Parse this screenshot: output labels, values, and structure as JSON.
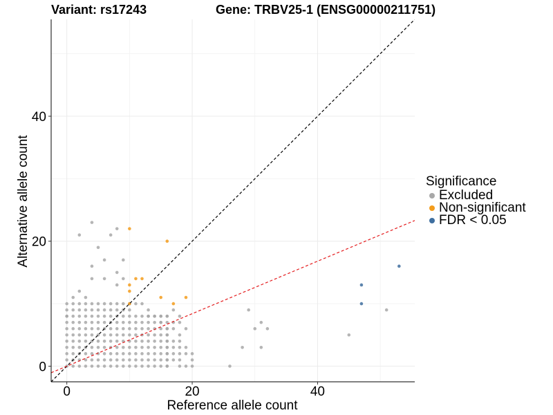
{
  "chart_data": {
    "type": "scatter",
    "title_left": "Variant: rs17243",
    "title_right": "Gene: TRBV25-1 (ENSG00000211751)",
    "xlabel": "Reference allele count",
    "ylabel": "Alternative allele count",
    "xlim": [
      -2.5,
      55.5
    ],
    "ylim": [
      -2.5,
      55.5
    ],
    "x_ticks": [
      0,
      20,
      40
    ],
    "y_ticks": [
      0,
      20,
      40
    ],
    "grid": true,
    "legend": {
      "title": "Significance",
      "placement": "right",
      "entries": [
        {
          "label": "Excluded",
          "color": "#a8a8a8"
        },
        {
          "label": "Non-significant",
          "color": "#f39c1c"
        },
        {
          "label": "FDR < 0.05",
          "color": "#3f6f9f"
        }
      ]
    },
    "reference_lines": [
      {
        "name": "identity",
        "slope": 1,
        "intercept": 0,
        "color": "#000000",
        "style": "dashed"
      },
      {
        "name": "fit",
        "slope": 0.42,
        "intercept": 0,
        "color": "#e41a1c",
        "style": "dashed"
      }
    ],
    "grid_cluster": {
      "series": "Excluded",
      "x_max": 16,
      "y_max": 10,
      "note": "dense lattice of excluded points for reference count 0-16 and alternative count 0-10"
    },
    "series": [
      {
        "name": "Excluded",
        "points": [
          [
            0,
            8
          ],
          [
            1,
            11
          ],
          [
            2,
            12
          ],
          [
            2,
            21
          ],
          [
            3,
            11
          ],
          [
            4,
            16
          ],
          [
            4,
            23
          ],
          [
            4,
            14
          ],
          [
            5,
            19
          ],
          [
            6,
            17
          ],
          [
            6,
            14
          ],
          [
            7,
            21
          ],
          [
            8,
            13
          ],
          [
            8,
            22
          ],
          [
            9,
            17
          ],
          [
            9,
            14
          ],
          [
            8,
            15
          ],
          [
            17,
            9
          ],
          [
            18,
            8
          ],
          [
            18,
            7
          ],
          [
            17,
            7
          ],
          [
            16,
            8
          ],
          [
            17,
            6
          ],
          [
            18,
            5
          ],
          [
            19,
            6
          ],
          [
            20,
            1
          ],
          [
            20,
            0
          ],
          [
            26,
            0
          ],
          [
            28,
            3
          ],
          [
            29,
            9
          ],
          [
            30,
            6
          ],
          [
            31,
            7
          ],
          [
            31,
            3
          ],
          [
            32,
            6
          ],
          [
            45,
            5
          ],
          [
            51,
            9
          ],
          [
            20,
            2
          ],
          [
            19,
            3
          ],
          [
            18,
            4
          ],
          [
            18,
            3
          ],
          [
            17,
            4
          ],
          [
            17,
            3
          ],
          [
            17,
            2
          ],
          [
            18,
            2
          ],
          [
            19,
            2
          ],
          [
            16,
            6
          ],
          [
            16,
            5
          ],
          [
            16,
            4
          ],
          [
            16,
            3
          ],
          [
            16,
            2
          ],
          [
            16,
            1
          ],
          [
            16,
            0
          ],
          [
            15,
            7
          ],
          [
            15,
            8
          ],
          [
            14,
            8
          ],
          [
            13,
            9
          ],
          [
            13,
            8
          ],
          [
            12,
            10
          ],
          [
            11,
            10
          ],
          [
            18,
            0
          ],
          [
            19,
            0
          ],
          [
            17,
            1
          ],
          [
            18,
            1
          ]
        ]
      },
      {
        "name": "Non-significant",
        "points": [
          [
            10,
            22
          ],
          [
            16,
            20
          ],
          [
            11,
            14
          ],
          [
            12,
            14
          ],
          [
            10,
            13
          ],
          [
            10,
            12
          ],
          [
            15,
            11
          ],
          [
            19,
            11
          ],
          [
            17,
            10
          ],
          [
            10,
            10
          ]
        ]
      },
      {
        "name": "FDR < 0.05",
        "points": [
          [
            53,
            16
          ],
          [
            47,
            13
          ],
          [
            47,
            10
          ]
        ]
      }
    ]
  }
}
